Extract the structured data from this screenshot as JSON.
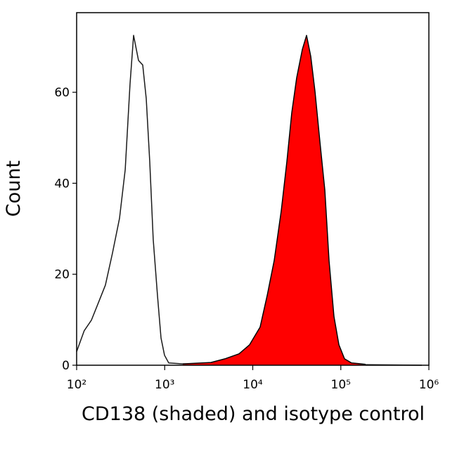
{
  "chart_data": {
    "type": "line",
    "xlabel": "CD138 (shaded) and isotype control",
    "ylabel": "Count",
    "xscale": "log",
    "xlim": [
      100,
      1000000
    ],
    "xticks": [
      {
        "value": 100,
        "label": "10²"
      },
      {
        "value": 1000,
        "label": "10³"
      },
      {
        "value": 10000,
        "label": "10⁴"
      },
      {
        "value": 100000,
        "label": "10⁵"
      },
      {
        "value": 1000000,
        "label": "10⁶"
      }
    ],
    "ylim": [
      0,
      77.5
    ],
    "yticks": [
      0,
      20,
      40,
      60
    ],
    "series": [
      {
        "color": "#1a1a1a",
        "fill": "none",
        "x": [
          100,
          122,
          147,
          177,
          212,
          255,
          307,
          356,
          404,
          443,
          504,
          563,
          617,
          676,
          741,
          828,
          908,
          995,
          1111,
          1605,
          20900,
          832000
        ],
        "values": [
          3,
          7.6,
          9.9,
          13.8,
          17.6,
          24.6,
          32.3,
          43,
          61.7,
          72.5,
          67,
          66,
          58.6,
          44.7,
          27.7,
          15.3,
          6,
          2.2,
          0.5,
          0.3,
          0.3,
          0
        ]
      },
      {
        "color": "#000000",
        "fill": "#ff0000",
        "x": [
          1605,
          3350,
          4840,
          6985,
          9210,
          12130,
          14590,
          17530,
          21050,
          24380,
          27730,
          31550,
          36560,
          40830,
          45600,
          50930,
          57810,
          65770,
          73450,
          83560,
          95060,
          110200,
          132400,
          191000
        ],
        "values": [
          0.3,
          0.6,
          1.4,
          2.5,
          4.5,
          8.4,
          15.3,
          23,
          33.9,
          44.7,
          55.5,
          63.2,
          69.4,
          72.5,
          67.9,
          60.2,
          49.3,
          38.5,
          23,
          10.7,
          4.5,
          1.4,
          0.5,
          0.2
        ]
      }
    ]
  }
}
